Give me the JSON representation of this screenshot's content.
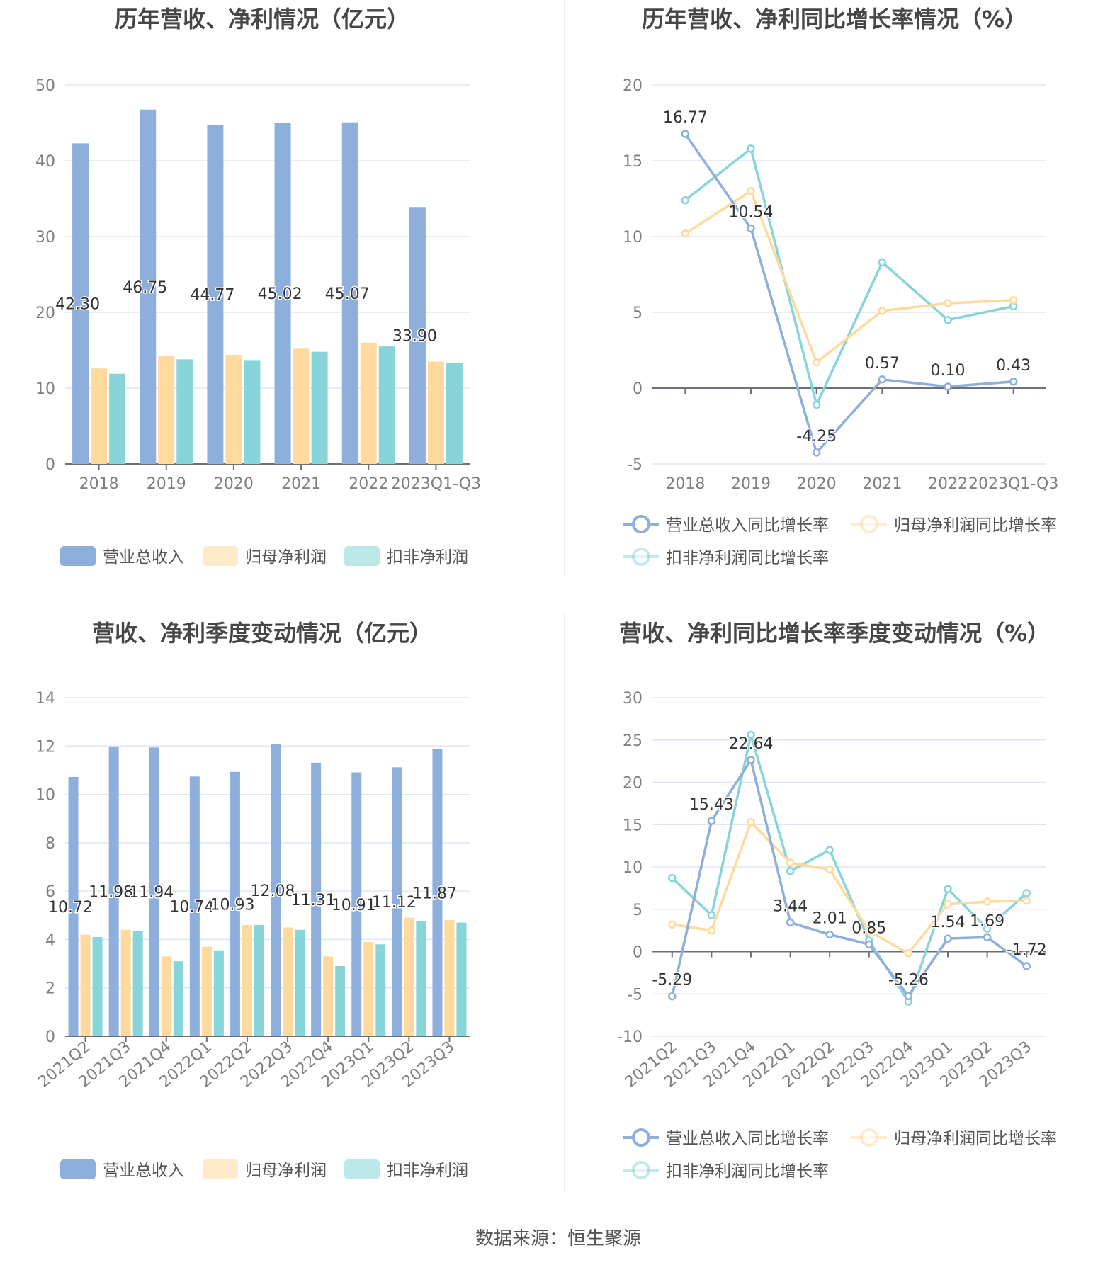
{
  "colors": {
    "revenue": "#8eaedb",
    "net_profit": "#ffda9c",
    "deducted_profit": "#87d5d8",
    "grid": "#e0e6f1",
    "axis": "#6e7079"
  },
  "footer": "数据来源：恒生聚源",
  "chart_data": [
    {
      "type": "bar",
      "title": "历年营收、净利情况（亿元）",
      "categories": [
        "2018",
        "2019",
        "2020",
        "2021",
        "2022",
        "2023Q1-Q3"
      ],
      "ylim": [
        0,
        50
      ],
      "yticks": [
        "0",
        "10",
        "20",
        "30",
        "40",
        "50"
      ],
      "legend_position": "bottom",
      "series": [
        {
          "name": "营业总收入",
          "values": [
            42.3,
            46.75,
            44.77,
            45.02,
            45.07,
            33.9
          ],
          "labels": [
            "42.30",
            "46.75",
            "44.77",
            "45.02",
            "45.07",
            "33.90"
          ]
        },
        {
          "name": "归母净利润",
          "values": [
            12.6,
            14.2,
            14.4,
            15.2,
            16.0,
            13.5
          ]
        },
        {
          "name": "扣非净利润",
          "values": [
            11.9,
            13.8,
            13.7,
            14.8,
            15.5,
            13.3
          ]
        }
      ]
    },
    {
      "type": "line",
      "title": "历年营收、净利同比增长率情况（%）",
      "categories": [
        "2018",
        "2019",
        "2020",
        "2021",
        "2022",
        "2023Q1-Q3"
      ],
      "ylim": [
        -5,
        20
      ],
      "yticks": [
        "-5",
        "0",
        "5",
        "10",
        "15",
        "20"
      ],
      "legend_position": "bottom",
      "series": [
        {
          "name": "营业总收入同比增长率",
          "values": [
            16.77,
            10.54,
            -4.25,
            0.57,
            0.1,
            0.43
          ],
          "labels": [
            "16.77",
            "10.54",
            "-4.25",
            "0.57",
            "0.10",
            "0.43"
          ]
        },
        {
          "name": "归母净利润同比增长率",
          "values": [
            10.2,
            13.0,
            1.7,
            5.1,
            5.6,
            5.8
          ]
        },
        {
          "name": "扣非净利润同比增长率",
          "values": [
            12.4,
            15.8,
            -1.1,
            8.3,
            4.5,
            5.4
          ]
        }
      ]
    },
    {
      "type": "bar",
      "title": "营收、净利季度变动情况（亿元）",
      "categories": [
        "2021Q2",
        "2021Q3",
        "2021Q4",
        "2022Q1",
        "2022Q2",
        "2022Q3",
        "2022Q4",
        "2023Q1",
        "2023Q2",
        "2023Q3"
      ],
      "ylim": [
        0,
        14
      ],
      "yticks": [
        "0",
        "2",
        "4",
        "6",
        "8",
        "10",
        "12",
        "14"
      ],
      "legend_position": "bottom",
      "series": [
        {
          "name": "营业总收入",
          "values": [
            10.72,
            11.98,
            11.94,
            10.74,
            10.93,
            12.08,
            11.31,
            10.91,
            11.12,
            11.87
          ],
          "labels": [
            "10.72",
            "11.98",
            "11.94",
            "10.74",
            "10.93",
            "12.08",
            "11.31",
            "10.91",
            "11.12",
            "11.87"
          ]
        },
        {
          "name": "归母净利润",
          "values": [
            4.2,
            4.4,
            3.3,
            3.7,
            4.6,
            4.5,
            3.3,
            3.9,
            4.9,
            4.8
          ]
        },
        {
          "name": "扣非净利润",
          "values": [
            4.1,
            4.35,
            3.1,
            3.55,
            4.6,
            4.4,
            2.9,
            3.8,
            4.75,
            4.7
          ]
        }
      ]
    },
    {
      "type": "line",
      "title": "营收、净利同比增长率季度变动情况（%）",
      "categories": [
        "2021Q2",
        "2021Q3",
        "2021Q4",
        "2022Q1",
        "2022Q2",
        "2022Q3",
        "2022Q4",
        "2023Q1",
        "2023Q2",
        "2023Q3"
      ],
      "ylim": [
        -10,
        30
      ],
      "yticks": [
        "-10",
        "-5",
        "0",
        "5",
        "10",
        "15",
        "20",
        "25",
        "30"
      ],
      "legend_position": "bottom",
      "series": [
        {
          "name": "营业总收入同比增长率",
          "values": [
            -5.29,
            15.43,
            22.64,
            3.44,
            2.01,
            0.85,
            -5.26,
            1.54,
            1.69,
            -1.72
          ],
          "labels": [
            "-5.29",
            "15.43",
            "22.64",
            "3.44",
            "2.01",
            "0.85",
            "-5.26",
            "1.54",
            "1.69",
            "-1.72"
          ]
        },
        {
          "name": "归母净利润同比增长率",
          "values": [
            3.2,
            2.5,
            15.3,
            10.5,
            9.7,
            2.4,
            -0.2,
            5.6,
            5.9,
            6.0
          ]
        },
        {
          "name": "扣非净利润同比增长率",
          "values": [
            8.7,
            4.3,
            25.6,
            9.5,
            12.0,
            1.3,
            -5.9,
            7.4,
            2.7,
            6.9
          ]
        }
      ]
    }
  ]
}
